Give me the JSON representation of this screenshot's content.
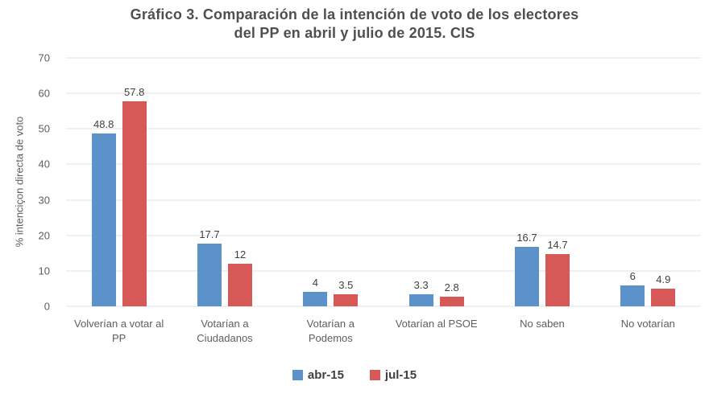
{
  "chart_data": {
    "type": "bar",
    "title": "Gráfico 3. Comparación de la intención de voto de los electores del PP en abril y julio de 2015. CIS",
    "title_lines": [
      "Gráfico 3. Comparación de la intención de voto de los electores",
      "del PP en abril y julio de 2015. CIS"
    ],
    "ylabel": "% intenciçon directa de voto",
    "xlabel": "",
    "categories": [
      "Volverían a votar al PP",
      "Votarían a Ciudadanos",
      "Votarían a Podemos",
      "Votarían al PSOE",
      "No saben",
      "No votarían"
    ],
    "series": [
      {
        "name": "abr-15",
        "color": "#5B92CA",
        "values": [
          48.8,
          17.7,
          4,
          3.3,
          16.7,
          6
        ]
      },
      {
        "name": "jul-15",
        "color": "#D65857",
        "values": [
          57.8,
          12,
          3.5,
          2.8,
          14.7,
          4.9
        ]
      }
    ],
    "ylim": [
      0,
      70
    ],
    "yticks": [
      0,
      10,
      20,
      30,
      40,
      50,
      60,
      70
    ],
    "grid": true,
    "gridline_color": "#e2e2e2",
    "legend_position": "bottom",
    "data_labels": true
  }
}
